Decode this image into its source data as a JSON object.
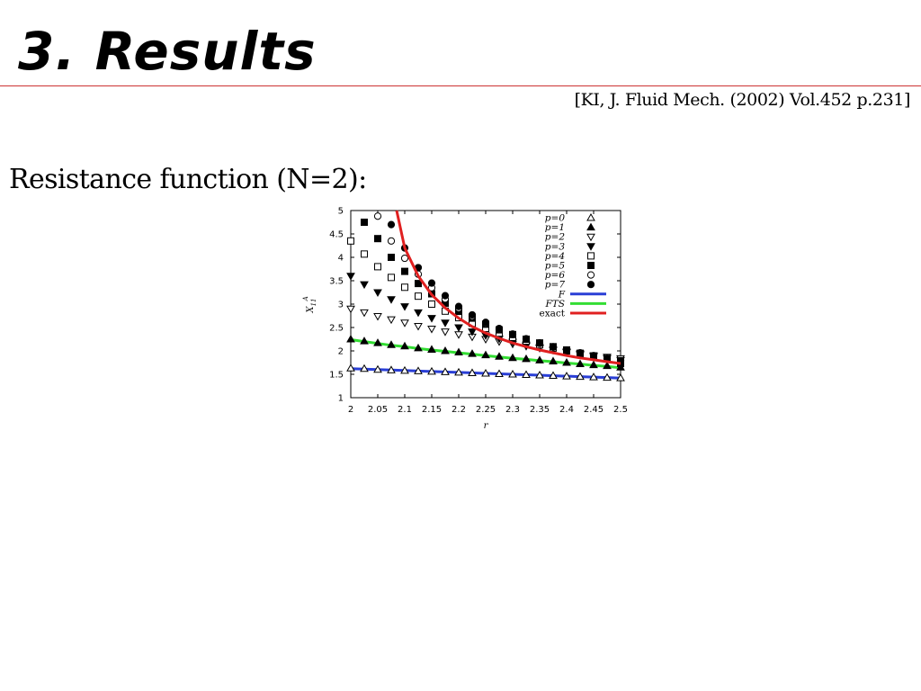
{
  "slide": {
    "title": "3. Results",
    "citation": "[KI, J. Fluid Mech. (2002) Vol.452 p.231]",
    "heading": "Resistance function (N=2):"
  },
  "colors": {
    "title_rule": "#cc3333",
    "F": "#2a3fd6",
    "FTS": "#33dd33",
    "exact": "#e02020",
    "markers": "#000000"
  },
  "chart_data": {
    "type": "scatter",
    "xlabel": "r",
    "ylabel": "X11A",
    "xlim": [
      2,
      2.5
    ],
    "ylim": [
      1,
      5
    ],
    "xticks": [
      2,
      2.05,
      2.1,
      2.15,
      2.2,
      2.25,
      2.3,
      2.35,
      2.4,
      2.45,
      2.5
    ],
    "xtick_labels": [
      "2",
      "2.05",
      "2.1",
      "2.15",
      "2.2",
      "2.25",
      "2.3",
      "2.35",
      "2.4",
      "2.45",
      "2.5"
    ],
    "yticks": [
      1,
      1.5,
      2,
      2.5,
      3,
      3.5,
      4,
      4.5,
      5
    ],
    "ytick_labels": [
      "1",
      "1.5",
      "2",
      "2.5",
      "3",
      "3.5",
      "4",
      "4.5",
      "5"
    ],
    "grid": false,
    "legend_position": "top-right",
    "x": [
      2.0,
      2.025,
      2.05,
      2.075,
      2.1,
      2.125,
      2.15,
      2.175,
      2.2,
      2.225,
      2.25,
      2.275,
      2.3,
      2.325,
      2.35,
      2.375,
      2.4,
      2.425,
      2.45,
      2.475,
      2.5
    ],
    "series": [
      {
        "name": "p=0",
        "style": "marker",
        "marker": "triangle-up-open",
        "values": [
          1.63,
          1.62,
          1.6,
          1.59,
          1.58,
          1.57,
          1.56,
          1.55,
          1.54,
          1.53,
          1.52,
          1.51,
          1.5,
          1.49,
          1.48,
          1.47,
          1.46,
          1.45,
          1.44,
          1.43,
          1.42
        ]
      },
      {
        "name": "p=1",
        "style": "marker",
        "marker": "triangle-up-filled",
        "values": [
          2.25,
          2.21,
          2.17,
          2.13,
          2.1,
          2.06,
          2.03,
          2.0,
          1.97,
          1.94,
          1.91,
          1.88,
          1.85,
          1.83,
          1.8,
          1.78,
          1.75,
          1.72,
          1.7,
          1.68,
          1.65
        ]
      },
      {
        "name": "p=2",
        "style": "marker",
        "marker": "triangle-down-open",
        "values": [
          2.9,
          2.82,
          2.74,
          2.67,
          2.6,
          2.53,
          2.47,
          2.41,
          2.35,
          2.3,
          2.25,
          2.2,
          2.15,
          2.1,
          2.06,
          2.02,
          1.98,
          1.94,
          1.9,
          1.87,
          1.84
        ]
      },
      {
        "name": "p=3",
        "style": "marker",
        "marker": "triangle-down-filled",
        "values": [
          3.6,
          3.42,
          3.25,
          3.1,
          2.95,
          2.82,
          2.7,
          2.6,
          2.5,
          2.41,
          2.33,
          2.26,
          2.19,
          2.13,
          2.07,
          2.02,
          1.97,
          1.92,
          1.88,
          1.84,
          1.8
        ]
      },
      {
        "name": "p=4",
        "style": "marker",
        "marker": "square-open",
        "values": [
          4.35,
          4.07,
          3.8,
          3.57,
          3.36,
          3.17,
          3.0,
          2.85,
          2.71,
          2.59,
          2.48,
          2.38,
          2.29,
          2.21,
          2.13,
          2.06,
          2.0,
          1.94,
          1.89,
          1.84,
          1.79
        ]
      },
      {
        "name": "p=5",
        "style": "marker",
        "marker": "square-filled",
        "values": [
          null,
          4.75,
          4.4,
          4.0,
          3.7,
          3.44,
          3.22,
          3.02,
          2.85,
          2.7,
          2.57,
          2.45,
          2.35,
          2.25,
          2.17,
          2.09,
          2.02,
          1.95,
          1.89,
          1.83,
          1.73
        ]
      },
      {
        "name": "p=6",
        "style": "marker",
        "marker": "circle-open",
        "values": [
          null,
          null,
          4.88,
          4.35,
          3.98,
          3.64,
          3.35,
          3.11,
          2.91,
          2.74,
          2.59,
          2.46,
          2.35,
          2.25,
          2.16,
          2.08,
          2.01,
          1.95,
          1.89,
          1.84,
          1.79
        ]
      },
      {
        "name": "p=7",
        "style": "marker",
        "marker": "circle-filled",
        "values": [
          null,
          null,
          null,
          4.7,
          4.2,
          3.78,
          3.45,
          3.18,
          2.95,
          2.77,
          2.61,
          2.48,
          2.36,
          2.26,
          2.17,
          2.09,
          2.02,
          1.96,
          1.9,
          1.84,
          1.79
        ]
      },
      {
        "name": "F",
        "style": "line",
        "color": "#2a3fd6",
        "values": [
          1.62,
          1.61,
          1.6,
          1.59,
          1.58,
          1.57,
          1.56,
          1.55,
          1.54,
          1.53,
          1.52,
          1.51,
          1.5,
          1.49,
          1.48,
          1.47,
          1.46,
          1.45,
          1.44,
          1.43,
          1.42
        ]
      },
      {
        "name": "FTS",
        "style": "line",
        "color": "#33dd33",
        "values": [
          2.24,
          2.2,
          2.16,
          2.12,
          2.09,
          2.05,
          2.02,
          1.99,
          1.96,
          1.93,
          1.9,
          1.87,
          1.84,
          1.82,
          1.79,
          1.77,
          1.74,
          1.72,
          1.69,
          1.67,
          1.64
        ]
      },
      {
        "name": "exact",
        "style": "line",
        "color": "#e02020",
        "x": [
          2.085,
          2.1,
          2.125,
          2.15,
          2.175,
          2.2,
          2.225,
          2.25,
          2.275,
          2.3,
          2.325,
          2.35,
          2.375,
          2.4,
          2.425,
          2.45,
          2.475,
          2.5
        ],
        "values": [
          5.0,
          4.2,
          3.6,
          3.2,
          2.92,
          2.7,
          2.52,
          2.38,
          2.27,
          2.17,
          2.09,
          2.02,
          1.96,
          1.9,
          1.85,
          1.81,
          1.77,
          1.73
        ]
      }
    ]
  }
}
